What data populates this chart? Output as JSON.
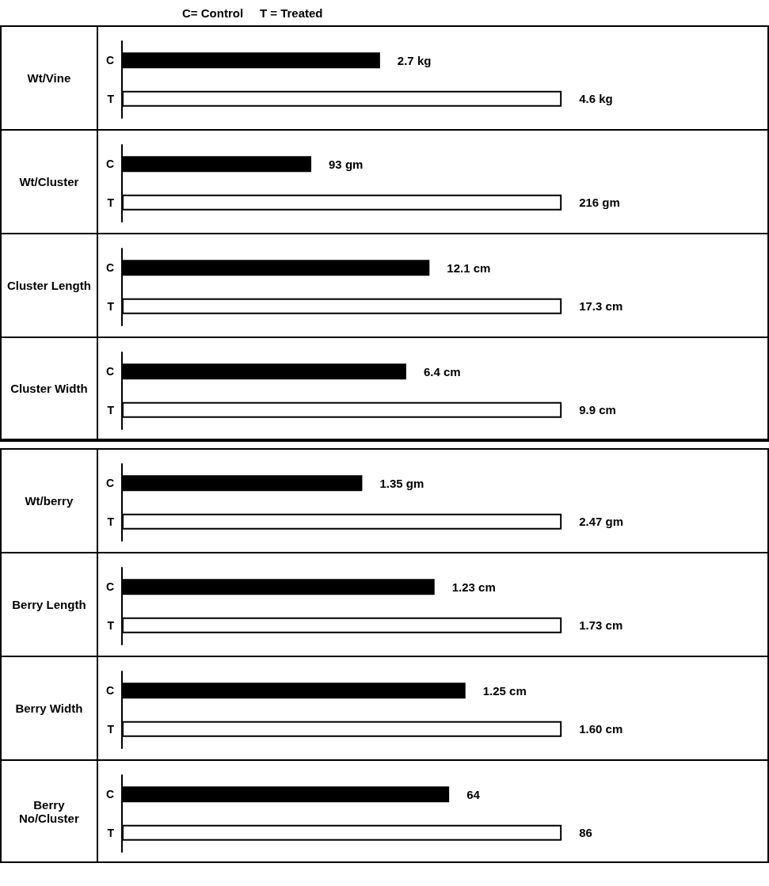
{
  "chart_data": [
    {
      "type": "bar",
      "orientation": "horizontal",
      "title": "Wt/Vine",
      "categories": [
        "C",
        "T"
      ],
      "values": [
        2.7,
        4.6
      ],
      "value_labels": [
        "2.7 kg",
        "4.6 kg"
      ],
      "colors": [
        "#000000",
        "#ffffff"
      ],
      "tick_labels": "y",
      "annotations": [
        "C= Control     T = Treated"
      ]
    },
    {
      "type": "bar",
      "orientation": "horizontal",
      "title": "Wt/Cluster",
      "categories": [
        "C",
        "T"
      ],
      "values": [
        93,
        216
      ],
      "value_labels": [
        "93 gm",
        "216 gm"
      ],
      "colors": [
        "#000000",
        "#ffffff"
      ],
      "tick_labels": "y"
    },
    {
      "type": "bar",
      "orientation": "horizontal",
      "title": "Cluster Length",
      "categories": [
        "C",
        "T"
      ],
      "values": [
        12.1,
        17.3
      ],
      "value_labels": [
        "12.1 cm",
        "17.3 cm"
      ],
      "colors": [
        "#000000",
        "#ffffff"
      ],
      "tick_labels": "y"
    },
    {
      "type": "bar",
      "orientation": "horizontal",
      "title": "Cluster Width",
      "categories": [
        "C",
        "T"
      ],
      "values": [
        6.4,
        9.9
      ],
      "value_labels": [
        "6.4 cm",
        "9.9 cm"
      ],
      "colors": [
        "#000000",
        "#ffffff"
      ],
      "tick_labels": "y"
    },
    {
      "type": "bar",
      "orientation": "horizontal",
      "title": "Wt/berry",
      "categories": [
        "C",
        "T"
      ],
      "values": [
        1.35,
        2.47
      ],
      "value_labels": [
        "1.35 gm",
        "2.47 gm"
      ],
      "colors": [
        "#000000",
        "#ffffff"
      ],
      "tick_labels": "y"
    },
    {
      "type": "bar",
      "orientation": "horizontal",
      "title": "Berry Length",
      "categories": [
        "C",
        "T"
      ],
      "values": [
        1.23,
        1.73
      ],
      "value_labels": [
        "1.23 cm",
        "1.73 cm"
      ],
      "colors": [
        "#000000",
        "#ffffff"
      ],
      "tick_labels": "y"
    },
    {
      "type": "bar",
      "orientation": "horizontal",
      "title": "Berry Width",
      "categories": [
        "C",
        "T"
      ],
      "values": [
        1.25,
        1.6
      ],
      "value_labels": [
        "1.25 cm",
        "1.60 cm"
      ],
      "colors": [
        "#000000",
        "#ffffff"
      ],
      "tick_labels": "y"
    },
    {
      "type": "bar",
      "orientation": "horizontal",
      "title": "Berry No/Cluster",
      "categories": [
        "C",
        "T"
      ],
      "values": [
        64,
        86
      ],
      "value_labels": [
        "64",
        "86"
      ],
      "colors": [
        "#000000",
        "#ffffff"
      ],
      "tick_labels": "y"
    }
  ]
}
